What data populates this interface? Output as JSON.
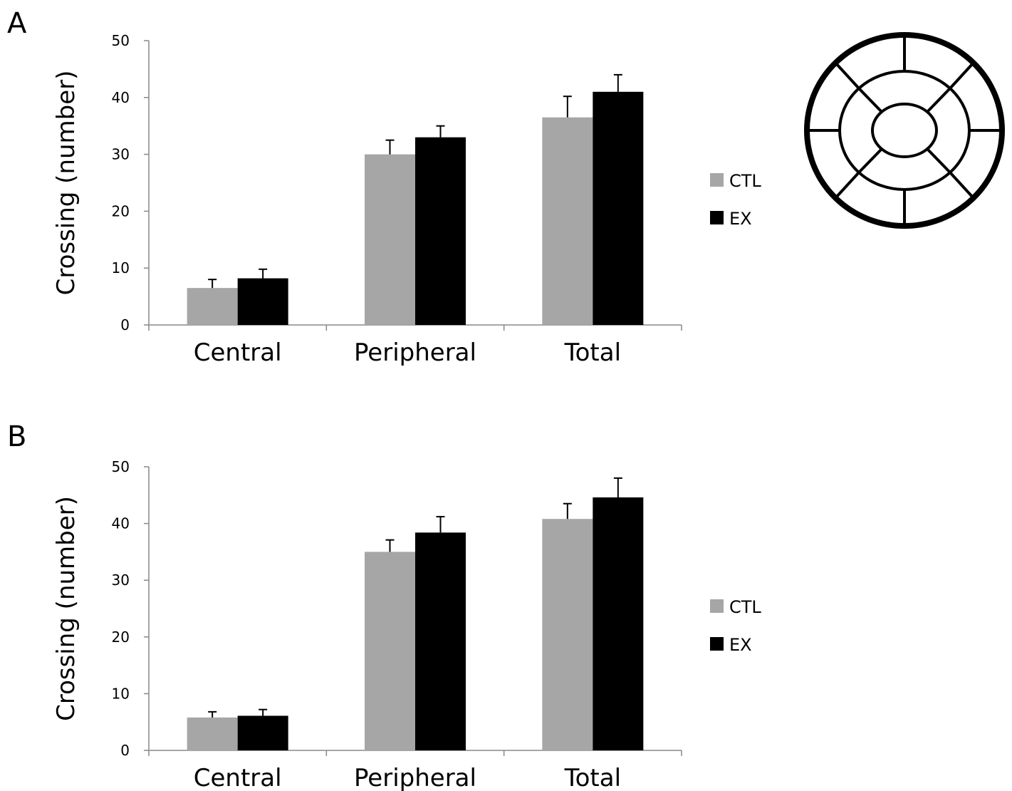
{
  "panels": [
    {
      "letter": "A"
    },
    {
      "letter": "B"
    }
  ],
  "chart_data": [
    {
      "type": "bar",
      "panel": "A",
      "categories": [
        "Central",
        "Peripheral",
        "Total"
      ],
      "series": [
        {
          "name": "CTL",
          "values": [
            6.5,
            30,
            36.5
          ],
          "errors": [
            1.5,
            2.5,
            3.7
          ],
          "color": "#a6a6a6"
        },
        {
          "name": "EX",
          "values": [
            8.2,
            33,
            41
          ],
          "errors": [
            1.6,
            2.0,
            3.0
          ],
          "color": "#000000"
        }
      ],
      "title": "",
      "xlabel": "",
      "ylabel": "Crossing (number)",
      "ylim": [
        0,
        50
      ],
      "yticks": [
        "0",
        "10",
        "20",
        "30",
        "40",
        "50"
      ],
      "grid": false,
      "legend": "right"
    },
    {
      "type": "bar",
      "panel": "B",
      "categories": [
        "Central",
        "Peripheral",
        "Total"
      ],
      "series": [
        {
          "name": "CTL",
          "values": [
            5.8,
            35,
            40.8
          ],
          "errors": [
            1.0,
            2.1,
            2.7
          ],
          "color": "#a6a6a6"
        },
        {
          "name": "EX",
          "values": [
            6.1,
            38.4,
            44.6
          ],
          "errors": [
            1.1,
            2.8,
            3.4
          ],
          "color": "#000000"
        }
      ],
      "title": "",
      "xlabel": "",
      "ylabel": "Crossing (number)",
      "ylim": [
        0,
        50
      ],
      "yticks": [
        "0",
        "10",
        "20",
        "30",
        "40",
        "50"
      ],
      "grid": false,
      "legend": "right"
    }
  ],
  "diagram": {
    "name": "open-field-arena-diagram",
    "type": "circular arena divided into central and peripheral zones"
  }
}
